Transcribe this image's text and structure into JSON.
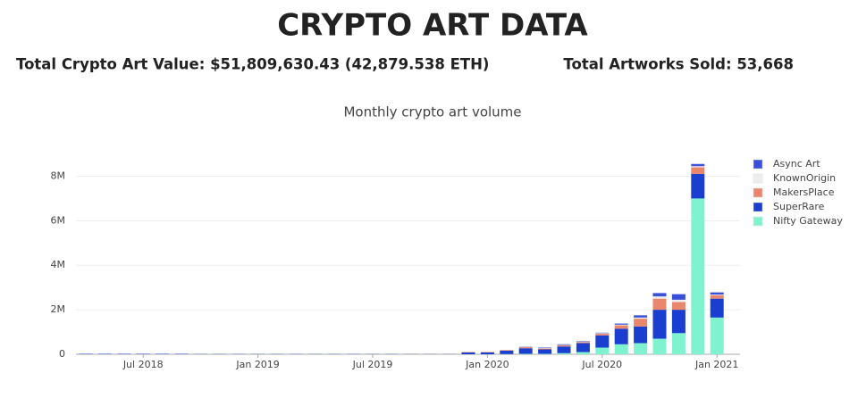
{
  "header": {
    "title": "CRYPTO ART DATA",
    "total_value": "Total Crypto Art Value: $51,809,630.43 (42,879.538 ETH)",
    "total_sold": "Total Artworks Sold: 53,668"
  },
  "chart_data": {
    "type": "bar",
    "stacked": true,
    "title": "Monthly crypto art volume",
    "categories": [
      "2018-04",
      "2018-05",
      "2018-06",
      "2018-07",
      "2018-08",
      "2018-09",
      "2018-10",
      "2018-11",
      "2018-12",
      "2019-01",
      "2019-02",
      "2019-03",
      "2019-04",
      "2019-05",
      "2019-06",
      "2019-07",
      "2019-08",
      "2019-09",
      "2019-10",
      "2019-11",
      "2019-12",
      "2020-01",
      "2020-02",
      "2020-03",
      "2020-04",
      "2020-05",
      "2020-06",
      "2020-07",
      "2020-08",
      "2020-09",
      "2020-10",
      "2020-11",
      "2020-12",
      "2021-01"
    ],
    "series": [
      {
        "name": "Async Art",
        "color": "#3b50d9",
        "values": [
          0,
          0,
          0,
          0,
          0,
          0,
          0,
          0,
          0,
          0,
          0,
          0,
          0,
          0,
          0,
          0,
          0,
          0,
          0,
          0,
          0,
          0,
          0,
          10000,
          20000,
          30000,
          20000,
          20000,
          50000,
          100000,
          150000,
          250000,
          100000,
          100000
        ]
      },
      {
        "name": "KnownOrigin",
        "color": "#eeeeee",
        "values": [
          0,
          0,
          0,
          0,
          0,
          0,
          0,
          0,
          0,
          0,
          0,
          0,
          0,
          0,
          0,
          0,
          0,
          0,
          0,
          0,
          5000,
          10000,
          10000,
          20000,
          20000,
          20000,
          30000,
          20000,
          30000,
          50000,
          100000,
          100000,
          50000,
          30000
        ]
      },
      {
        "name": "MakersPlace",
        "color": "#e9866b",
        "values": [
          0,
          0,
          0,
          0,
          0,
          0,
          0,
          0,
          0,
          0,
          0,
          0,
          0,
          0,
          0,
          0,
          0,
          5000,
          5000,
          5000,
          20000,
          20000,
          30000,
          50000,
          40000,
          50000,
          50000,
          80000,
          150000,
          350000,
          500000,
          350000,
          300000,
          150000
        ]
      },
      {
        "name": "SuperRare",
        "color": "#1a3ecf",
        "values": [
          20000,
          20000,
          20000,
          20000,
          20000,
          20000,
          10000,
          10000,
          10000,
          10000,
          10000,
          10000,
          10000,
          10000,
          10000,
          10000,
          10000,
          10000,
          10000,
          10000,
          80000,
          80000,
          150000,
          250000,
          200000,
          300000,
          400000,
          550000,
          700000,
          750000,
          1300000,
          1050000,
          1100000,
          850000
        ]
      },
      {
        "name": "Nifty Gateway",
        "color": "#7ff3d0",
        "values": [
          0,
          0,
          0,
          0,
          0,
          0,
          0,
          0,
          0,
          0,
          0,
          0,
          0,
          0,
          0,
          0,
          0,
          0,
          0,
          0,
          0,
          0,
          10000,
          20000,
          20000,
          50000,
          100000,
          300000,
          450000,
          500000,
          700000,
          950000,
          7000000,
          1650000
        ]
      }
    ],
    "ylim": [
      0,
      8900000
    ],
    "yticks": [
      0,
      {
        "value": 2000000,
        "label": "2M"
      },
      {
        "value": 4000000,
        "label": "4M"
      },
      {
        "value": 6000000,
        "label": "6M"
      },
      {
        "value": 8000000,
        "label": "8M"
      }
    ],
    "xticks": [
      {
        "value": "2018-07",
        "label": "Jul 2018"
      },
      {
        "value": "2019-01",
        "label": "Jan 2019"
      },
      {
        "value": "2019-07",
        "label": "Jul 2019"
      },
      {
        "value": "2020-01",
        "label": "Jan 2020"
      },
      {
        "value": "2020-07",
        "label": "Jul 2020"
      },
      {
        "value": "2021-01",
        "label": "Jan 2021"
      }
    ],
    "grid": true,
    "legend": "right"
  }
}
